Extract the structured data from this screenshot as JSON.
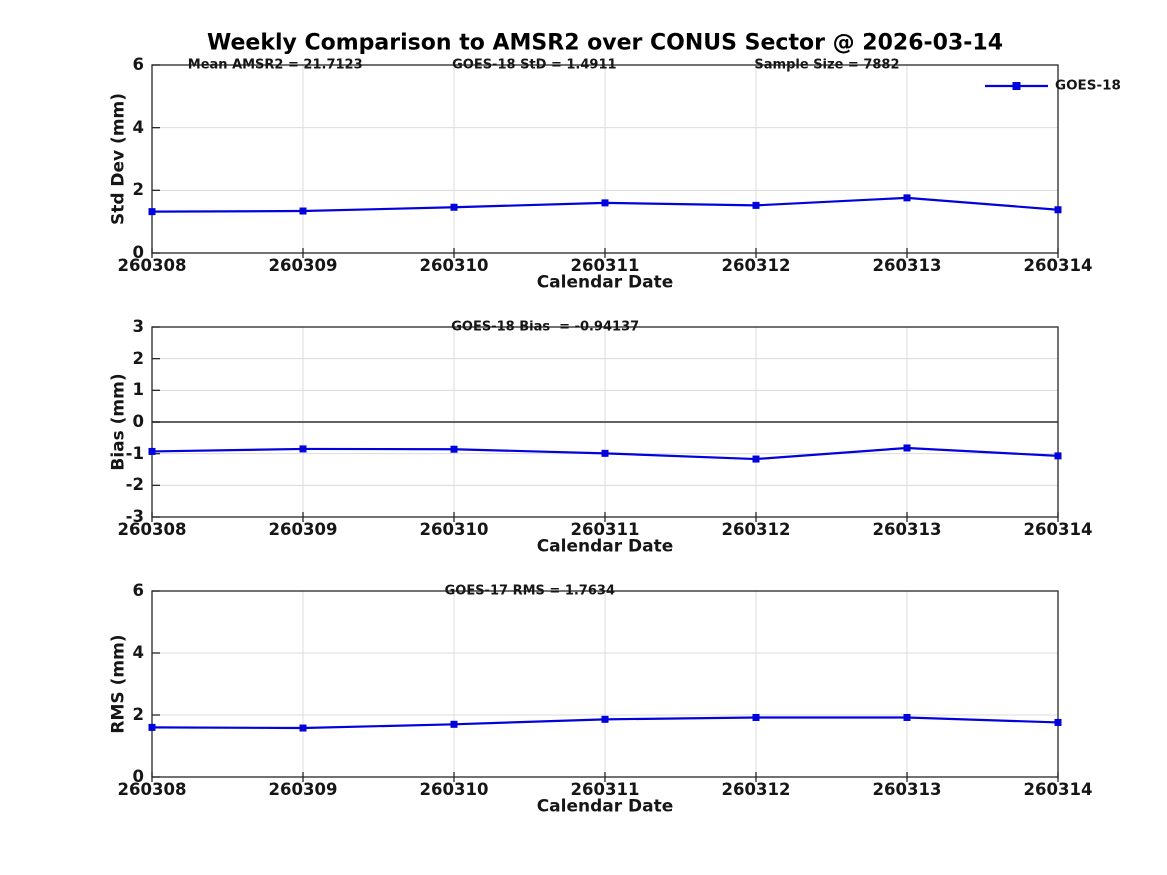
{
  "title": "Weekly Comparison to AMSR2 over CONUS Sector @ 2026-03-14",
  "colors": {
    "line": "#0202DD",
    "marker": "#0202DD",
    "grid": "#DCDCDC",
    "zero_line": "#4D4D4D",
    "axis_frame": "#262626",
    "text": "#161616"
  },
  "chart_data": [
    {
      "type": "line",
      "panel": "std-dev",
      "annotations": [
        "Mean AMSR2 = 21.7123",
        "GOES-18 StD = 1.4911",
        "Sample Size = 7882"
      ],
      "xlabel": "Calendar Date",
      "ylabel": "Std Dev (mm)",
      "categories": [
        "260308",
        "260309",
        "260310",
        "260311",
        "260312",
        "260313",
        "260314"
      ],
      "series": [
        {
          "name": "GOES-18",
          "marker": "square",
          "values": [
            1.32,
            1.34,
            1.46,
            1.6,
            1.52,
            1.76,
            1.38
          ]
        }
      ],
      "ylim": [
        0,
        6
      ],
      "yticks": [
        0,
        2,
        4,
        6
      ],
      "ytick_labels": [
        "0",
        "2",
        "4",
        "6"
      ],
      "grid": true,
      "zero_line": false,
      "legend": {
        "label": "GOES-18",
        "position": "top-right"
      }
    },
    {
      "type": "line",
      "panel": "bias",
      "annotations": [
        "GOES-18 Bias  = -0.94137"
      ],
      "xlabel": "Calendar Date",
      "ylabel": "Bias (mm)",
      "categories": [
        "260308",
        "260309",
        "260310",
        "260311",
        "260312",
        "260313",
        "260314"
      ],
      "series": [
        {
          "name": "GOES-18",
          "marker": "square",
          "values": [
            -0.93,
            -0.85,
            -0.86,
            -0.99,
            -1.17,
            -0.82,
            -1.07
          ]
        }
      ],
      "ylim": [
        -3,
        3
      ],
      "yticks": [
        3,
        2,
        1,
        0,
        -1,
        -2,
        -3
      ],
      "ytick_labels": [
        "3",
        "2",
        "1",
        "0",
        "-1",
        "-2",
        "-3"
      ],
      "grid": true,
      "zero_line": true,
      "legend": null
    },
    {
      "type": "line",
      "panel": "rms",
      "annotations": [
        "GOES-17 RMS = 1.7634"
      ],
      "xlabel": "Calendar Date",
      "ylabel": "RMS (mm)",
      "categories": [
        "260308",
        "260309",
        "260310",
        "260311",
        "260312",
        "260313",
        "260314"
      ],
      "series": [
        {
          "name": "GOES-18",
          "marker": "square",
          "values": [
            1.6,
            1.58,
            1.7,
            1.86,
            1.92,
            1.92,
            1.76
          ]
        }
      ],
      "ylim": [
        0,
        6
      ],
      "yticks": [
        0,
        2,
        4,
        6
      ],
      "ytick_labels": [
        "0",
        "2",
        "4",
        "6"
      ],
      "grid": true,
      "zero_line": false,
      "legend": null
    }
  ]
}
